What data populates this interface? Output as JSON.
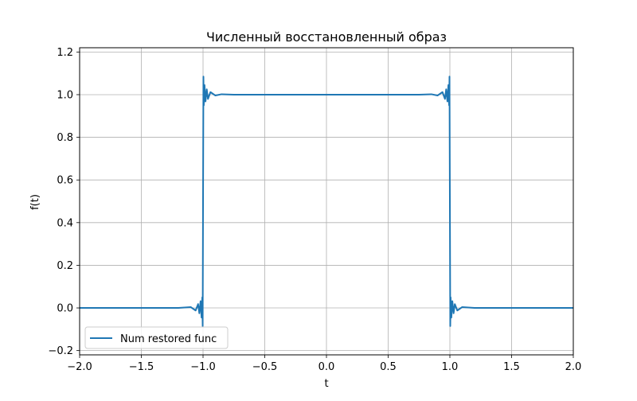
{
  "chart_data": {
    "type": "line",
    "title": "Численный восстановленный образ",
    "xlabel": "t",
    "ylabel": "f(t)",
    "xlim": [
      -2.0,
      2.0
    ],
    "ylim": [
      -0.22,
      1.22
    ],
    "x_ticks": [
      -2.0,
      -1.5,
      -1.0,
      -0.5,
      0.0,
      0.5,
      1.0,
      1.5,
      2.0
    ],
    "x_tick_labels": [
      "−2.0",
      "−1.5",
      "−1.0",
      "−0.5",
      "0.0",
      "0.5",
      "1.0",
      "1.5",
      "2.0"
    ],
    "y_ticks": [
      -0.2,
      0.0,
      0.2,
      0.4,
      0.6,
      0.8,
      1.0,
      1.2
    ],
    "y_tick_labels": [
      "−0.2",
      "0.0",
      "0.2",
      "0.4",
      "0.6",
      "0.8",
      "1.0",
      "1.2"
    ],
    "grid": true,
    "legend_position": "lower-left",
    "series": [
      {
        "name": "Num restored func",
        "color": "#1f77b4",
        "points": [
          [
            -2.0,
            0.0
          ],
          [
            -1.5,
            0.0
          ],
          [
            -1.2,
            0.0
          ],
          [
            -1.1,
            0.004
          ],
          [
            -1.06,
            -0.012
          ],
          [
            -1.04,
            0.018
          ],
          [
            -1.03,
            -0.025
          ],
          [
            -1.02,
            0.032
          ],
          [
            -1.012,
            -0.045
          ],
          [
            -1.006,
            0.05
          ],
          [
            -1.003,
            -0.085
          ],
          [
            -0.997,
            1.085
          ],
          [
            -0.994,
            0.95
          ],
          [
            -0.988,
            1.045
          ],
          [
            -0.98,
            0.968
          ],
          [
            -0.97,
            1.025
          ],
          [
            -0.96,
            0.98
          ],
          [
            -0.94,
            1.012
          ],
          [
            -0.9,
            0.996
          ],
          [
            -0.85,
            1.002
          ],
          [
            -0.75,
            1.0
          ],
          [
            0.0,
            1.0
          ],
          [
            0.75,
            1.0
          ],
          [
            0.85,
            1.002
          ],
          [
            0.9,
            0.996
          ],
          [
            0.94,
            1.012
          ],
          [
            0.96,
            0.98
          ],
          [
            0.97,
            1.025
          ],
          [
            0.98,
            0.968
          ],
          [
            0.988,
            1.045
          ],
          [
            0.994,
            0.95
          ],
          [
            0.997,
            1.085
          ],
          [
            1.003,
            -0.085
          ],
          [
            1.006,
            0.05
          ],
          [
            1.012,
            -0.045
          ],
          [
            1.02,
            0.032
          ],
          [
            1.03,
            -0.025
          ],
          [
            1.04,
            0.018
          ],
          [
            1.06,
            -0.012
          ],
          [
            1.1,
            0.004
          ],
          [
            1.2,
            0.0
          ],
          [
            1.5,
            0.0
          ],
          [
            2.0,
            0.0
          ]
        ]
      }
    ]
  }
}
